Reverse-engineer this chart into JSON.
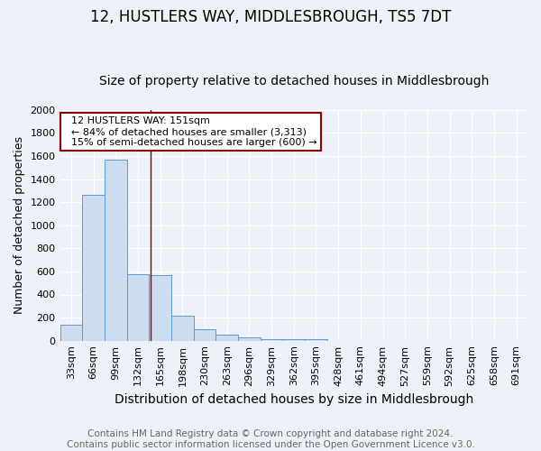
{
  "title": "12, HUSTLERS WAY, MIDDLESBROUGH, TS5 7DT",
  "subtitle": "Size of property relative to detached houses in Middlesbrough",
  "xlabel": "Distribution of detached houses by size in Middlesbrough",
  "ylabel": "Number of detached properties",
  "footer_line1": "Contains HM Land Registry data © Crown copyright and database right 2024.",
  "footer_line2": "Contains public sector information licensed under the Open Government Licence v3.0.",
  "categories": [
    "33sqm",
    "66sqm",
    "99sqm",
    "132sqm",
    "165sqm",
    "198sqm",
    "230sqm",
    "263sqm",
    "296sqm",
    "329sqm",
    "362sqm",
    "395sqm",
    "428sqm",
    "461sqm",
    "494sqm",
    "527sqm",
    "559sqm",
    "592sqm",
    "625sqm",
    "658sqm",
    "691sqm"
  ],
  "values": [
    140,
    1265,
    1570,
    575,
    565,
    220,
    100,
    55,
    25,
    15,
    15,
    10,
    0,
    0,
    0,
    0,
    0,
    0,
    0,
    0,
    0
  ],
  "bar_color": "#cddcee",
  "bar_edge_color": "#5b9bd5",
  "ylim": [
    0,
    2000
  ],
  "yticks": [
    0,
    200,
    400,
    600,
    800,
    1000,
    1200,
    1400,
    1600,
    1800,
    2000
  ],
  "property_line_x": 3.575,
  "property_line_color": "#8b0000",
  "annotation_text": "  12 HUSTLERS WAY: 151sqm\n  ← 84% of detached houses are smaller (3,313)\n  15% of semi-detached houses are larger (600) →",
  "annotation_box_color": "white",
  "annotation_box_edge_color": "#8b0000",
  "background_color": "#edf1f8",
  "grid_color": "white",
  "title_fontsize": 12,
  "subtitle_fontsize": 10,
  "xlabel_fontsize": 10,
  "ylabel_fontsize": 9,
  "tick_fontsize": 8,
  "footer_fontsize": 7.5
}
